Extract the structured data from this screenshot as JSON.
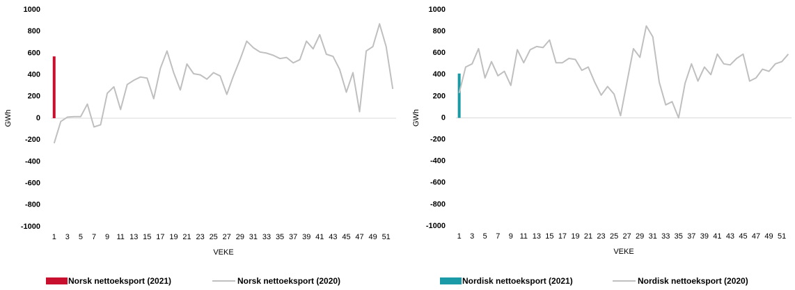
{
  "chart_data": [
    {
      "type": "bar_line",
      "y_label": "GWh",
      "x_label": "VEKE",
      "categories": [
        1,
        null,
        3,
        null,
        5,
        null,
        7,
        null,
        9,
        null,
        11,
        null,
        13,
        null,
        15,
        null,
        17,
        null,
        19,
        null,
        21,
        null,
        23,
        null,
        25,
        null,
        27,
        null,
        29,
        null,
        31,
        null,
        33,
        null,
        35,
        null,
        37,
        null,
        39,
        null,
        41,
        null,
        43,
        null,
        45,
        null,
        47,
        null,
        49,
        null,
        51,
        null
      ],
      "ylim": [
        -1000,
        1000
      ],
      "yticks": [
        -1000,
        -800,
        -600,
        -400,
        -200,
        0,
        200,
        400,
        600,
        800,
        1000
      ],
      "series": [
        {
          "name": "Norsk nettoeksport (2021)",
          "type": "bar",
          "color": "#c8102e",
          "values": [
            570,
            null,
            null,
            null,
            null,
            null,
            null,
            null,
            null,
            null,
            null,
            null,
            null,
            null,
            null,
            null,
            null,
            null,
            null,
            null,
            null,
            null,
            null,
            null,
            null,
            null,
            null,
            null,
            null,
            null,
            null,
            null,
            null,
            null,
            null,
            null,
            null,
            null,
            null,
            null,
            null,
            null,
            null,
            null,
            null,
            null,
            null,
            null,
            null,
            null,
            null,
            null
          ]
        },
        {
          "name": "Norsk nettoeksport (2020)",
          "type": "line",
          "color": "#bfbfbf",
          "values": [
            -230,
            -30,
            10,
            15,
            15,
            130,
            -80,
            -60,
            230,
            290,
            80,
            310,
            350,
            380,
            370,
            180,
            460,
            620,
            420,
            260,
            500,
            410,
            400,
            360,
            420,
            390,
            220,
            390,
            540,
            710,
            650,
            610,
            600,
            580,
            550,
            560,
            510,
            540,
            710,
            640,
            770,
            590,
            570,
            450,
            240,
            420,
            60,
            620,
            660,
            870,
            660,
            270
          ]
        }
      ]
    },
    {
      "type": "bar_line",
      "y_label": "GWh",
      "x_label": "VEKE",
      "categories": [
        1,
        null,
        3,
        null,
        5,
        null,
        7,
        null,
        9,
        null,
        11,
        null,
        13,
        null,
        15,
        null,
        17,
        null,
        19,
        null,
        21,
        null,
        23,
        null,
        25,
        null,
        27,
        null,
        29,
        null,
        31,
        null,
        33,
        null,
        35,
        null,
        37,
        null,
        39,
        null,
        41,
        null,
        43,
        null,
        45,
        null,
        47,
        null,
        49,
        null,
        51,
        null
      ],
      "ylim": [
        -1000,
        1000
      ],
      "yticks": [
        -1000,
        -800,
        -600,
        -400,
        -200,
        0,
        200,
        400,
        600,
        800,
        1000
      ],
      "series": [
        {
          "name": "Nordisk nettoeksport (2021)",
          "type": "bar",
          "color": "#1a9aa6",
          "values": [
            410,
            null,
            null,
            null,
            null,
            null,
            null,
            null,
            null,
            null,
            null,
            null,
            null,
            null,
            null,
            null,
            null,
            null,
            null,
            null,
            null,
            null,
            null,
            null,
            null,
            null,
            null,
            null,
            null,
            null,
            null,
            null,
            null,
            null,
            null,
            null,
            null,
            null,
            null,
            null,
            null,
            null,
            null,
            null,
            null,
            null,
            null,
            null,
            null,
            null,
            null,
            null
          ]
        },
        {
          "name": "Nordisk nettoeksport (2020)",
          "type": "line",
          "color": "#bfbfbf",
          "values": [
            230,
            470,
            500,
            640,
            370,
            520,
            390,
            430,
            300,
            630,
            510,
            630,
            660,
            650,
            720,
            510,
            510,
            550,
            540,
            440,
            470,
            330,
            210,
            290,
            220,
            20,
            330,
            640,
            560,
            850,
            750,
            330,
            120,
            150,
            0,
            320,
            500,
            340,
            470,
            400,
            590,
            500,
            490,
            550,
            590,
            340,
            370,
            450,
            430,
            500,
            520,
            590
          ]
        }
      ]
    }
  ]
}
